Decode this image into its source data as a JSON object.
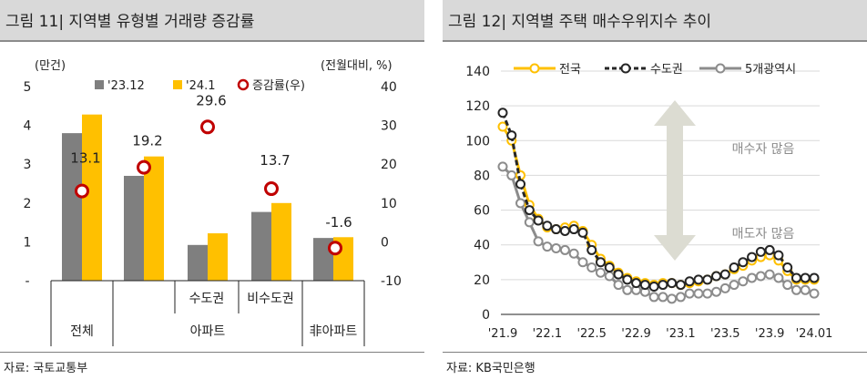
{
  "left": {
    "title": "그림 11| 지역별 유형별 거래량 증감률",
    "source": "자료: 국토교통부",
    "chart_data": {
      "type": "bar",
      "left_unit": "(만건)",
      "right_unit": "(전월대비, %)",
      "left_ticks": [
        "5",
        "4",
        "3",
        "2",
        "1",
        "-"
      ],
      "right_ticks": [
        "40",
        "30",
        "20",
        "10",
        "0",
        "-10"
      ],
      "ylim_left": [
        0,
        5
      ],
      "ylim_right": [
        -10,
        40
      ],
      "categories": [
        "전체",
        "수도권",
        "비수도권",
        "非아파트"
      ],
      "group_labels": {
        "top": [
          "수도권",
          "비수도권"
        ],
        "bottom": [
          "전체",
          "아파트",
          "非아파트"
        ]
      },
      "series": [
        {
          "name": "'23.12",
          "color": "#7f7f7f",
          "values": [
            3.8,
            0.92,
            1.77,
            1.1
          ]
        },
        {
          "name": "'24.1",
          "color": "#ffc000",
          "values": [
            4.28,
            1.22,
            2.0,
            1.12
          ]
        },
        {
          "name": "증감률(우)",
          "color": "#c00000",
          "values": [
            13.1,
            29.6,
            13.7,
            -1.6
          ],
          "axis": "right"
        }
      ],
      "series_extra": {
        "apartment_total": {
          "dec": 2.7,
          "jan": 3.2,
          "rate": 19.2
        }
      },
      "rate_labels": [
        "13.1",
        "19.2",
        "29.6",
        "13.7",
        "-1.6"
      ]
    }
  },
  "right": {
    "title": "그림 12| 지역별 주택 매수우위지수 추이",
    "source": "자료: KB국민은행",
    "chart_data": {
      "type": "line",
      "ylim": [
        0,
        140
      ],
      "y_ticks": [
        "140",
        "120",
        "100",
        "80",
        "60",
        "40",
        "20",
        "0"
      ],
      "x_tick_labels": [
        "'21.9",
        "'22.1",
        "'22.5",
        "'22.9",
        "'23.1",
        "'23.5",
        "'23.9",
        "'24.01"
      ],
      "annotation_top": "매수자 많음",
      "annotation_bottom": "매도자 많음",
      "series": [
        {
          "name": "전국",
          "color": "#ffc000",
          "values": [
            108,
            100,
            80,
            63,
            55,
            50,
            49,
            50,
            51,
            48,
            40,
            32,
            28,
            24,
            21,
            19,
            18,
            17,
            18,
            18,
            17,
            18,
            19,
            20,
            22,
            23,
            26,
            28,
            31,
            33,
            34,
            31,
            25,
            20,
            20,
            20
          ]
        },
        {
          "name": "수도권",
          "color": "#262626",
          "values": [
            116,
            103,
            75,
            60,
            54,
            51,
            49,
            48,
            49,
            47,
            37,
            30,
            27,
            23,
            20,
            18,
            17,
            16,
            17,
            18,
            17,
            19,
            20,
            20,
            22,
            23,
            27,
            30,
            33,
            36,
            37,
            34,
            27,
            21,
            21,
            21
          ]
        },
        {
          "name": "5개광역시",
          "color": "#8c8c8c",
          "values": [
            85,
            80,
            64,
            53,
            42,
            39,
            38,
            37,
            35,
            30,
            27,
            24,
            22,
            17,
            14,
            14,
            13,
            10,
            10,
            9,
            10,
            12,
            12,
            12,
            13,
            15,
            17,
            19,
            21,
            22,
            23,
            21,
            17,
            14,
            14,
            12
          ]
        }
      ]
    }
  }
}
